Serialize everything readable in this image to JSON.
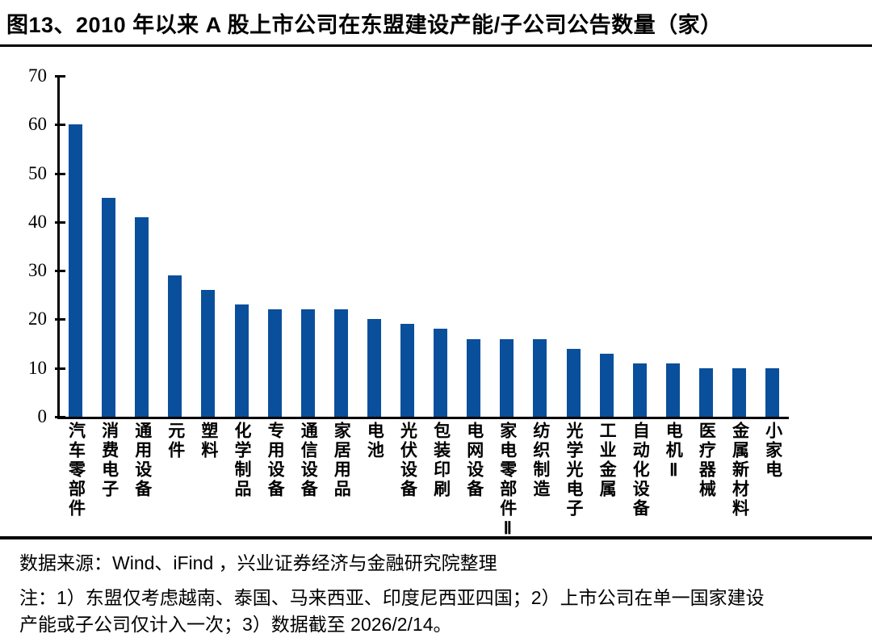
{
  "title": "图13、2010 年以来 A 股上市公司在东盟建设产能/子公司公告数量（家）",
  "chart_data": {
    "type": "bar",
    "title": "图13、2010 年以来 A 股上市公司在东盟建设产能/子公司公告数量（家）",
    "categories": [
      "汽车零部件",
      "消费电子",
      "通用设备",
      "元件",
      "塑料",
      "化学制品",
      "专用设备",
      "通信设备",
      "家居用品",
      "电池",
      "光伏设备",
      "包装印刷",
      "电网设备",
      "家电零部件Ⅱ",
      "纺织制造",
      "光学光电子",
      "工业金属",
      "自动化设备",
      "电机Ⅱ",
      "医疗器械",
      "金属新材料",
      "小家电"
    ],
    "values": [
      60,
      45,
      41,
      29,
      26,
      23,
      22,
      22,
      22,
      20,
      19,
      18,
      16,
      16,
      16,
      14,
      13,
      11,
      11,
      10,
      10,
      10
    ],
    "xlabel": "",
    "ylabel": "",
    "ylim": [
      0,
      70
    ],
    "yticks": [
      0,
      10,
      20,
      30,
      40,
      50,
      60,
      70
    ],
    "grid": false,
    "legend_position": "none",
    "bar_color": "#0A4F9B",
    "axis_color": "#000000"
  },
  "footer": {
    "source": "数据来源：Wind、iFind ，兴业证券经济与金融研究院整理",
    "note_line1": "注：1）东盟仅考虑越南、泰国、马来西亚、印度尼西亚四国；2）上市公司在单一国家建设",
    "note_line2": "产能或子公司仅计入一次；3）数据截至 2026/2/14。"
  }
}
